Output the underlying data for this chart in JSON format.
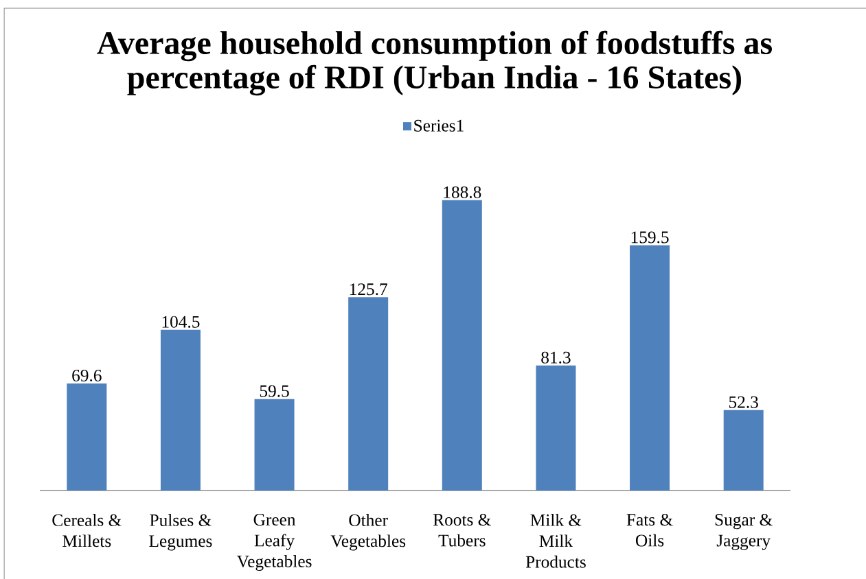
{
  "chart_data": {
    "type": "bar",
    "title": "Average household consumption of foodstuffs as percentage of RDI (Urban India - 16 States)",
    "categories": [
      "Cereals & Millets",
      "Pulses & Legumes",
      "Green Leafy Vegetables",
      "Other Vegetables",
      "Roots & Tubers",
      "Milk & Milk Products",
      "Fats & Oils",
      "Sugar & Jaggery"
    ],
    "series": [
      {
        "name": "Series1",
        "color": "#4f81bd",
        "values": [
          69.6,
          104.5,
          59.5,
          125.7,
          188.8,
          81.3,
          159.5,
          52.3
        ]
      }
    ],
    "data_labels": true,
    "legend": "top"
  }
}
